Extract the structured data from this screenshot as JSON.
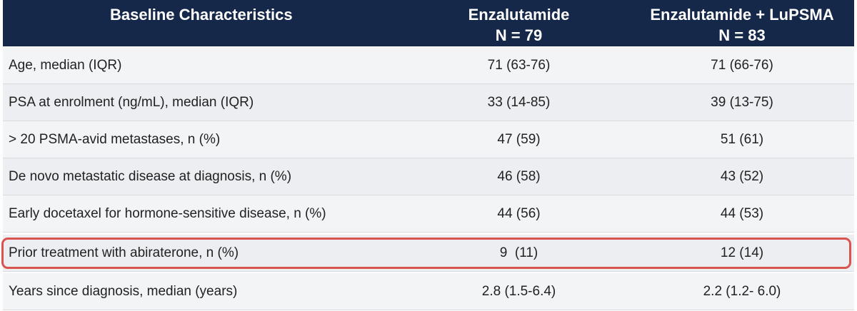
{
  "table": {
    "headers": {
      "characteristics": "Baseline Characteristics",
      "enzalutamide": {
        "line1": "Enzalutamide",
        "line2": "N = 79"
      },
      "combo": {
        "line1": "Enzalutamide + LuPSMA",
        "line2": "N = 83"
      }
    },
    "rows": [
      {
        "label": "Age, median (IQR)",
        "enzalutamide": "71 (63-76)",
        "combo": "71 (66-76)"
      },
      {
        "label": "PSA at enrolment (ng/mL), median (IQR)",
        "enzalutamide": "33 (14-85)",
        "combo": "39 (13-75)"
      },
      {
        "label": "> 20 PSMA-avid metastases, n (%)",
        "enzalutamide": "47 (59)",
        "combo": "51 (61)"
      },
      {
        "label": "De novo metastatic disease at diagnosis, n (%)",
        "enzalutamide": "46 (58)",
        "combo": "43 (52)"
      },
      {
        "label": "Early docetaxel for hormone-sensitive disease, n (%)",
        "enzalutamide": "44 (56)",
        "combo": "44 (53)"
      },
      {
        "label": "Prior treatment with abiraterone, n (%)",
        "enzalutamide": "9  (11)",
        "combo": "12 (14)"
      },
      {
        "label": "Years since diagnosis, median (years)",
        "enzalutamide": "2.8 (1.5-6.4)",
        "combo": "2.2 (1.2- 6.0)"
      }
    ],
    "highlight_color": "#d9534f",
    "header_color": "#15284a"
  }
}
